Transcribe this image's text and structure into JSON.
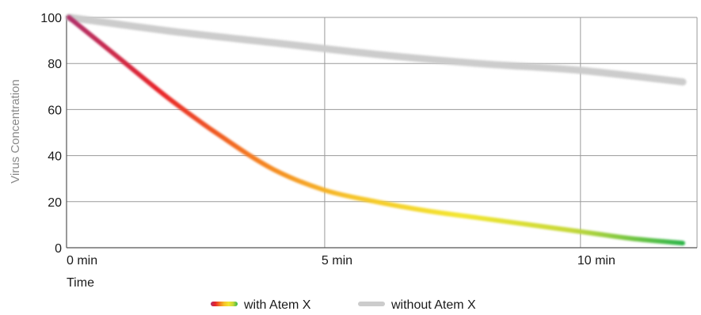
{
  "chart_data": {
    "type": "line",
    "xlabel": "Time",
    "ylabel": "Virus Concentration",
    "xlim": [
      0,
      12
    ],
    "ylim": [
      0,
      100
    ],
    "x_ticks": [
      {
        "value": 0,
        "label": "0 min"
      },
      {
        "value": 5,
        "label": "5 min"
      },
      {
        "value": 10,
        "label": "10 min"
      }
    ],
    "y_ticks": [
      0,
      20,
      40,
      60,
      80,
      100
    ],
    "grid": true,
    "legend_position": "bottom-center",
    "series": [
      {
        "name": "with Atem X",
        "style": "gradient",
        "colors": [
          "#b0306a",
          "#e8242a",
          "#f47a20",
          "#f6c42a",
          "#f3e630",
          "#c6d83a",
          "#2eb64a"
        ],
        "points": [
          [
            0,
            100
          ],
          [
            1,
            82
          ],
          [
            2,
            64
          ],
          [
            3,
            48
          ],
          [
            4,
            34
          ],
          [
            5,
            25
          ],
          [
            6,
            20
          ],
          [
            7,
            16
          ],
          [
            8,
            13
          ],
          [
            9,
            10
          ],
          [
            10,
            7
          ],
          [
            11,
            4
          ],
          [
            12,
            2
          ]
        ]
      },
      {
        "name": "without Atem X",
        "style": "solid",
        "colors": [
          "#cccccc"
        ],
        "points": [
          [
            0,
            100
          ],
          [
            2,
            94
          ],
          [
            4,
            89
          ],
          [
            6,
            84
          ],
          [
            8,
            80
          ],
          [
            10,
            77
          ],
          [
            12,
            72
          ]
        ]
      }
    ]
  }
}
